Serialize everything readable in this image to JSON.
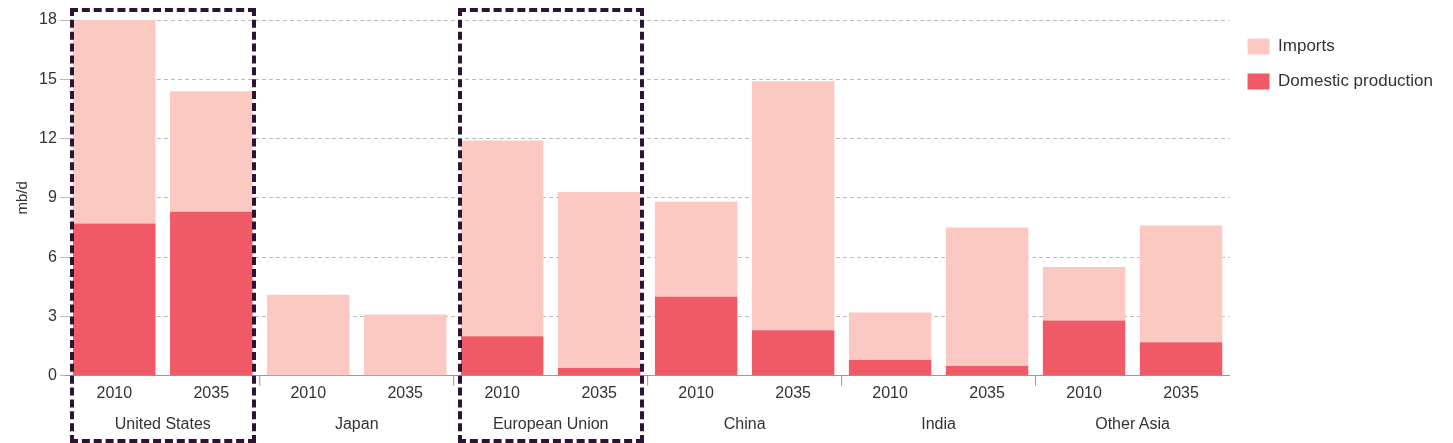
{
  "chart_data": {
    "type": "bar",
    "ylabel": "mb/d",
    "categories": [
      "2010",
      "2035",
      "2010",
      "2035",
      "2010",
      "2035",
      "2010",
      "2035",
      "2010",
      "2035",
      "2010",
      "2035"
    ],
    "annotations": [
      "United States",
      "Japan",
      "European Union",
      "China",
      "India",
      "Other Asia"
    ],
    "stacked": true,
    "series": [
      {
        "name": "Domestic production",
        "color": "#f05a66",
        "values": [
          7.7,
          8.3,
          0,
          0,
          2.0,
          0.4,
          4.0,
          2.3,
          0.8,
          0.5,
          2.8,
          1.7
        ]
      },
      {
        "name": "Imports",
        "color": "#fbc9c2",
        "values": [
          10.3,
          6.1,
          4.1,
          3.1,
          9.9,
          8.9,
          4.8,
          12.6,
          2.4,
          7.0,
          2.7,
          5.9
        ]
      }
    ],
    "ylim": [
      0,
      18
    ],
    "yticks": [
      0,
      3,
      6,
      9,
      12,
      15,
      18
    ],
    "grid": "y",
    "legend": "top right"
  }
}
